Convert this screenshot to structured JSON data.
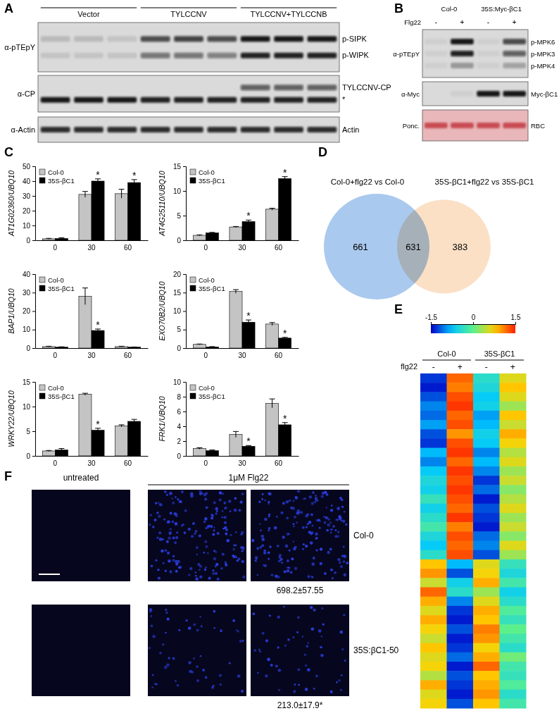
{
  "panel_labels": [
    "A",
    "B",
    "C",
    "D",
    "E",
    "F"
  ],
  "blot_a": {
    "lane_groups": [
      {
        "label": "Vector",
        "lanes": 3
      },
      {
        "label": "TYLCCNV",
        "lanes": 3
      },
      {
        "label": "TYLCCNV+TYLCCNB",
        "lanes": 3
      }
    ],
    "rows": [
      {
        "antibody": "α-pTEpY",
        "bands": [
          {
            "label": "p-SIPK",
            "intensity": [
              0.15,
              0.15,
              0.1,
              0.7,
              0.75,
              0.7,
              0.95,
              0.95,
              0.95
            ]
          },
          {
            "label": "p-WIPK",
            "intensity": [
              0.1,
              0.1,
              0.1,
              0.5,
              0.5,
              0.45,
              0.9,
              0.9,
              0.9
            ]
          }
        ]
      },
      {
        "antibody": "α-CP",
        "bands": [
          {
            "label": "TYLCCNV-CP",
            "intensity": [
              0,
              0,
              0,
              0,
              0,
              0,
              0.6,
              0.6,
              0.6
            ]
          },
          {
            "label": "*",
            "intensity": [
              0.95,
              0.95,
              0.95,
              0.9,
              0.9,
              0.9,
              0.9,
              0.9,
              0.9
            ]
          }
        ]
      },
      {
        "antibody": "α-Actin",
        "bands": [
          {
            "label": "Actin",
            "intensity": [
              0.85,
              0.85,
              0.85,
              0.85,
              0.85,
              0.85,
              0.85,
              0.85,
              0.85
            ]
          }
        ]
      }
    ]
  },
  "blot_b": {
    "lane_groups": [
      {
        "label": "Col-0",
        "lanes": 2
      },
      {
        "label": "35S:Myc-βC1",
        "lanes": 2
      }
    ],
    "treatment": {
      "label": "Flg22",
      "values": [
        "-",
        "+",
        "-",
        "+"
      ]
    },
    "rows": [
      {
        "antibody": "α-pTEpY",
        "bands": [
          {
            "label": "p-MPK6",
            "intensity": [
              0.05,
              0.95,
              0.05,
              0.7
            ]
          },
          {
            "label": "p-MPK3",
            "intensity": [
              0.05,
              0.9,
              0.05,
              0.6
            ]
          },
          {
            "label": "p-MPK4",
            "intensity": [
              0.05,
              0.3,
              0.05,
              0.25
            ]
          }
        ]
      },
      {
        "antibody": "α-Myc",
        "bands": [
          {
            "label": "Myc-βC1",
            "intensity": [
              0,
              0.05,
              0.95,
              0.95
            ]
          }
        ]
      },
      {
        "antibody": "Ponc.",
        "color": "#c0303a",
        "bands": [
          {
            "label": "RBC",
            "intensity": [
              0.8,
              0.8,
              0.8,
              0.8
            ]
          }
        ]
      }
    ]
  },
  "chart_data": [
    {
      "type": "bar",
      "y_label": "AT1G02360/UBQ10",
      "categories": [
        "0",
        "30",
        "60"
      ],
      "series": [
        {
          "name": "Col-0",
          "color": "#c4c4c4",
          "values": [
            1,
            31,
            31.5
          ],
          "errors": [
            0.3,
            2,
            3
          ]
        },
        {
          "name": "35S-βC1",
          "color": "#000000",
          "values": [
            1.2,
            40,
            39
          ],
          "errors": [
            0.5,
            1.5,
            2
          ]
        }
      ],
      "ylim": [
        0,
        50
      ],
      "yticks": [
        0,
        10,
        20,
        30,
        40,
        50
      ],
      "legend": "upper left",
      "annotations": [
        {
          "text": "*",
          "category": 1,
          "series": 1
        },
        {
          "text": "*",
          "category": 2,
          "series": 1
        }
      ]
    },
    {
      "type": "bar",
      "y_label": "AT4G25110/UBQ10",
      "categories": [
        "0",
        "30",
        "60"
      ],
      "series": [
        {
          "name": "Col-0",
          "color": "#c4c4c4",
          "values": [
            1,
            2.7,
            6.3
          ],
          "errors": [
            0.1,
            0.1,
            0.2
          ]
        },
        {
          "name": "35S-βC1",
          "color": "#000000",
          "values": [
            1.5,
            3.8,
            12.5
          ],
          "errors": [
            0.1,
            0.3,
            0.4
          ]
        }
      ],
      "ylim": [
        0,
        15
      ],
      "yticks": [
        0,
        5,
        10,
        15
      ],
      "legend": "upper left",
      "annotations": [
        {
          "text": "*",
          "category": 1,
          "series": 1
        },
        {
          "text": "*",
          "category": 2,
          "series": 1
        }
      ]
    },
    {
      "type": "bar",
      "y_label": "BAP1/UBQ10",
      "categories": [
        "0",
        "30",
        "60"
      ],
      "series": [
        {
          "name": "Col-0",
          "color": "#c4c4c4",
          "values": [
            0.8,
            28,
            0.8
          ],
          "errors": [
            0.2,
            4.5,
            0.2
          ]
        },
        {
          "name": "35S-βC1",
          "color": "#000000",
          "values": [
            0.5,
            9.5,
            0.5
          ],
          "errors": [
            0.2,
            0.8,
            0.1
          ]
        }
      ],
      "ylim": [
        0,
        40
      ],
      "yticks": [
        0,
        10,
        20,
        30,
        40
      ],
      "legend": "upper left",
      "annotations": [
        {
          "text": "*",
          "category": 1,
          "series": 1
        }
      ]
    },
    {
      "type": "bar",
      "y_label": "EXO70B2/UBQ10",
      "categories": [
        "0",
        "30",
        "60"
      ],
      "series": [
        {
          "name": "Col-0",
          "color": "#c4c4c4",
          "values": [
            1,
            15.3,
            6.5
          ],
          "errors": [
            0.1,
            0.5,
            0.4
          ]
        },
        {
          "name": "35S-βC1",
          "color": "#000000",
          "values": [
            0.3,
            7,
            2.7
          ],
          "errors": [
            0.1,
            0.6,
            0.2
          ]
        }
      ],
      "ylim": [
        0,
        20
      ],
      "yticks": [
        0,
        5,
        10,
        15,
        20
      ],
      "legend": "upper left",
      "annotations": [
        {
          "text": "*",
          "category": 1,
          "series": 1
        },
        {
          "text": "*",
          "category": 2,
          "series": 1
        }
      ]
    },
    {
      "type": "bar",
      "y_label": "WRKY22/UBQ10",
      "categories": [
        "0",
        "30",
        "60"
      ],
      "series": [
        {
          "name": "Col-0",
          "color": "#c4c4c4",
          "values": [
            1,
            12.5,
            6.1
          ],
          "errors": [
            0.1,
            0.2,
            0.2
          ]
        },
        {
          "name": "35S-βC1",
          "color": "#000000",
          "values": [
            1.2,
            5.2,
            7
          ],
          "errors": [
            0.3,
            0.4,
            0.4
          ]
        }
      ],
      "ylim": [
        0,
        15
      ],
      "yticks": [
        0,
        5,
        10,
        15
      ],
      "legend": "upper left",
      "annotations": [
        {
          "text": "*",
          "category": 1,
          "series": 1
        }
      ]
    },
    {
      "type": "bar",
      "y_label": "FRK1/UBQ10",
      "categories": [
        "0",
        "30",
        "60"
      ],
      "series": [
        {
          "name": "Col-0",
          "color": "#c4c4c4",
          "values": [
            1,
            2.9,
            7.1
          ],
          "errors": [
            0.1,
            0.4,
            0.6
          ]
        },
        {
          "name": "35S-βC1",
          "color": "#000000",
          "values": [
            0.7,
            1.3,
            4.2
          ],
          "errors": [
            0.1,
            0.1,
            0.3
          ]
        }
      ],
      "ylim": [
        0,
        10
      ],
      "yticks": [
        0,
        2,
        4,
        6,
        8,
        10
      ],
      "legend": "upper left",
      "annotations": [
        {
          "text": "*",
          "category": 1,
          "series": 1
        },
        {
          "text": "*",
          "category": 2,
          "series": 1
        }
      ]
    },
    {
      "type": "heatmap",
      "x_label": "flg22",
      "categories": [
        "-",
        "+",
        "-",
        "+"
      ],
      "groups": [
        {
          "label": "Col-0",
          "columns": [
            0,
            1
          ]
        },
        {
          "label": "35S-βC1",
          "columns": [
            2,
            3
          ]
        }
      ],
      "colorbar": {
        "range": [
          -1.5,
          1.5
        ],
        "ticks": [
          -1.5,
          0,
          1.5
        ]
      },
      "cells": [
        [
          -1.3,
          1.2,
          -0.4,
          0.6
        ],
        [
          -1.4,
          1.1,
          -0.5,
          0.8
        ],
        [
          -1.2,
          1.3,
          -0.7,
          0.6
        ],
        [
          -1.0,
          1.4,
          -0.6,
          0.3
        ],
        [
          -1.1,
          1.2,
          -0.9,
          0.8
        ],
        [
          -0.9,
          1.3,
          -0.8,
          0.5
        ],
        [
          -1.2,
          1.0,
          -0.6,
          0.9
        ],
        [
          -1.3,
          1.3,
          -0.7,
          0.7
        ],
        [
          -0.8,
          1.4,
          -1.0,
          0.4
        ],
        [
          -1.0,
          1.2,
          -0.8,
          0.6
        ],
        [
          -0.7,
          1.4,
          -1.0,
          0.3
        ],
        [
          -0.5,
          1.3,
          -1.3,
          0.5
        ],
        [
          -0.6,
          1.4,
          -1.1,
          0.2
        ],
        [
          -0.3,
          1.3,
          -1.4,
          0.4
        ],
        [
          -0.6,
          1.2,
          -1.2,
          0.6
        ],
        [
          -0.4,
          1.4,
          -1.3,
          0.3
        ],
        [
          -0.2,
          1.1,
          -1.4,
          0.5
        ],
        [
          -0.5,
          1.3,
          -1.1,
          0.2
        ],
        [
          -0.7,
          1.2,
          -1.0,
          0.6
        ],
        [
          -0.4,
          1.3,
          -1.2,
          0.3
        ],
        [
          0.8,
          -0.8,
          0.6,
          -0.3
        ],
        [
          1.0,
          -1.2,
          0.7,
          -0.5
        ],
        [
          0.5,
          -0.6,
          0.9,
          -0.2
        ],
        [
          1.2,
          -0.4,
          0.3,
          -0.6
        ],
        [
          0.9,
          -1.0,
          0.6,
          -0.4
        ],
        [
          0.6,
          -1.3,
          0.9,
          -0.1
        ],
        [
          0.9,
          -1.4,
          0.8,
          -0.3
        ],
        [
          0.7,
          -1.2,
          1.1,
          0.0
        ],
        [
          0.5,
          -1.4,
          1.0,
          -0.2
        ],
        [
          0.8,
          -1.3,
          0.7,
          -0.4
        ],
        [
          0.6,
          -1.1,
          0.9,
          0.1
        ],
        [
          0.7,
          -1.4,
          1.2,
          -0.2
        ],
        [
          0.4,
          -1.2,
          0.8,
          -0.3
        ],
        [
          0.9,
          -1.3,
          0.9,
          -0.1
        ],
        [
          0.6,
          -1.4,
          1.0,
          -0.4
        ],
        [
          0.7,
          -1.2,
          0.8,
          -0.2
        ]
      ]
    }
  ],
  "venn": {
    "sets": [
      {
        "label": "Col-0+flg22 vs Col-0",
        "only": 661,
        "color": "#a9c9ee"
      },
      {
        "label": "35S-βC1+flg22 vs 35S-βC1",
        "only": 383,
        "color": "#fbe0c6"
      }
    ],
    "overlap": 631
  },
  "image_f": {
    "headers": [
      {
        "label": "untreated",
        "span": 1
      },
      {
        "label": "1μM Flg22",
        "span": 2
      }
    ],
    "rows": [
      {
        "label": "Col-0",
        "counts": {
          "value": 698.2,
          "label": "698.2±57.55"
        }
      },
      {
        "label": "35S:βC1-50",
        "counts": {
          "value": 213.0,
          "label": "213.0±17.9*"
        }
      }
    ]
  }
}
